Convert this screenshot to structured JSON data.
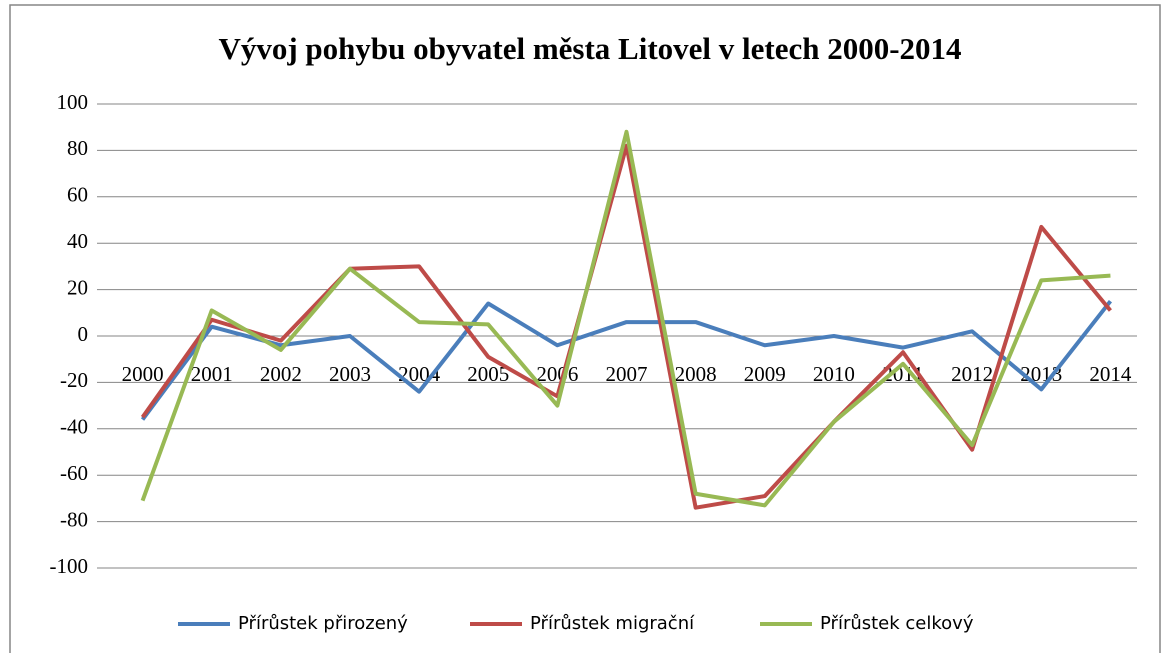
{
  "chart_data": {
    "type": "line",
    "title": "Vývoj pohybu obyvatel města Litovel v letech 2000-2014",
    "categories": [
      "2000",
      "2001",
      "2002",
      "2003",
      "2004",
      "2005",
      "2006",
      "2007",
      "2008",
      "2009",
      "2010",
      "2011",
      "2012",
      "2013",
      "2014"
    ],
    "series": [
      {
        "name": "Přírůstek přirozený",
        "color": "#4a7ebb",
        "values": [
          -36,
          4,
          -4,
          0,
          -24,
          14,
          -4,
          6,
          6,
          -4,
          0,
          -5,
          2,
          -23,
          15
        ]
      },
      {
        "name": "Přírůstek migrační",
        "color": "#be4b48",
        "values": [
          -35,
          7,
          -2,
          29,
          30,
          -9,
          -26,
          82,
          -74,
          -69,
          -37,
          -7,
          -49,
          47,
          11
        ]
      },
      {
        "name": "Přírůstek celkový",
        "color": "#98b954",
        "values": [
          -71,
          11,
          -6,
          29,
          6,
          5,
          -30,
          88,
          -68,
          -73,
          -37,
          -12,
          -47,
          24,
          26
        ]
      }
    ],
    "ylim": [
      -100,
      100
    ],
    "yticks": [
      -100,
      -80,
      -60,
      -40,
      -20,
      0,
      20,
      40,
      60,
      80,
      100
    ],
    "grid": true,
    "legend": "bottom"
  }
}
